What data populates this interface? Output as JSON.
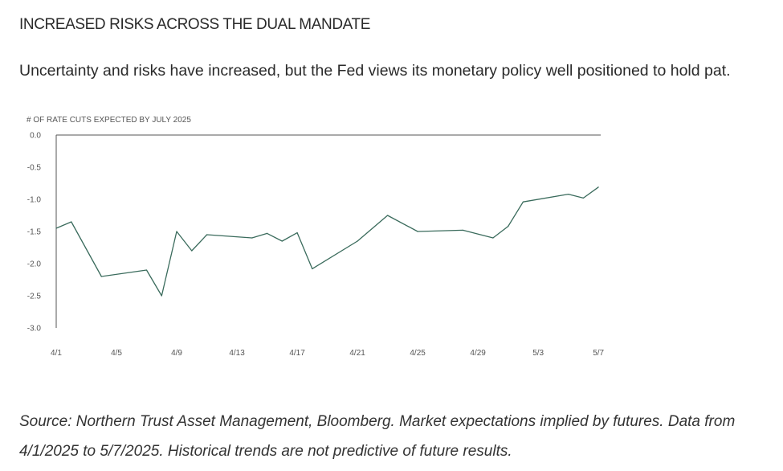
{
  "header": {
    "title": "INCREASED RISKS ACROSS THE DUAL MANDATE",
    "subtitle": "Uncertainty and risks have increased, but the Fed views its monetary policy well positioned to hold pat."
  },
  "footer": {
    "source": "Source: Northern Trust Asset Management, Bloomberg. Market expectations implied by futures. Data from 4/1/2025 to 5/7/2025. Historical trends are not predictive of future results."
  },
  "chart_data": {
    "type": "line",
    "title": "",
    "ylabel": "# OF RATE CUTS EXPECTED BY JULY 2025",
    "xlabel": "",
    "ylim": [
      -3.0,
      0.0
    ],
    "y_ticks": [
      "0.0",
      "-0.5",
      "-1.0",
      "-1.5",
      "-2.0",
      "-2.5",
      "-3.0"
    ],
    "x_ticks": [
      "4/1",
      "4/5",
      "4/9",
      "4/13",
      "4/17",
      "4/21",
      "4/25",
      "4/29",
      "5/3",
      "5/7"
    ],
    "grid": false,
    "line_color": "#3a6b5c",
    "series": [
      {
        "name": "",
        "x": [
          "4/1",
          "4/2",
          "4/4",
          "4/7",
          "4/8",
          "4/9",
          "4/10",
          "4/11",
          "4/14",
          "4/15",
          "4/16",
          "4/17",
          "4/18",
          "4/21",
          "4/23",
          "4/25",
          "4/28",
          "4/30",
          "5/1",
          "5/2",
          "5/5",
          "5/6",
          "5/7"
        ],
        "values": [
          -1.45,
          -1.35,
          -2.2,
          -2.1,
          -2.5,
          -1.5,
          -1.8,
          -1.55,
          -1.6,
          -1.53,
          -1.65,
          -1.52,
          -2.08,
          -1.65,
          -1.25,
          -1.5,
          -1.48,
          -1.6,
          -1.42,
          -1.04,
          -0.92,
          -0.98,
          -0.81
        ]
      }
    ]
  }
}
